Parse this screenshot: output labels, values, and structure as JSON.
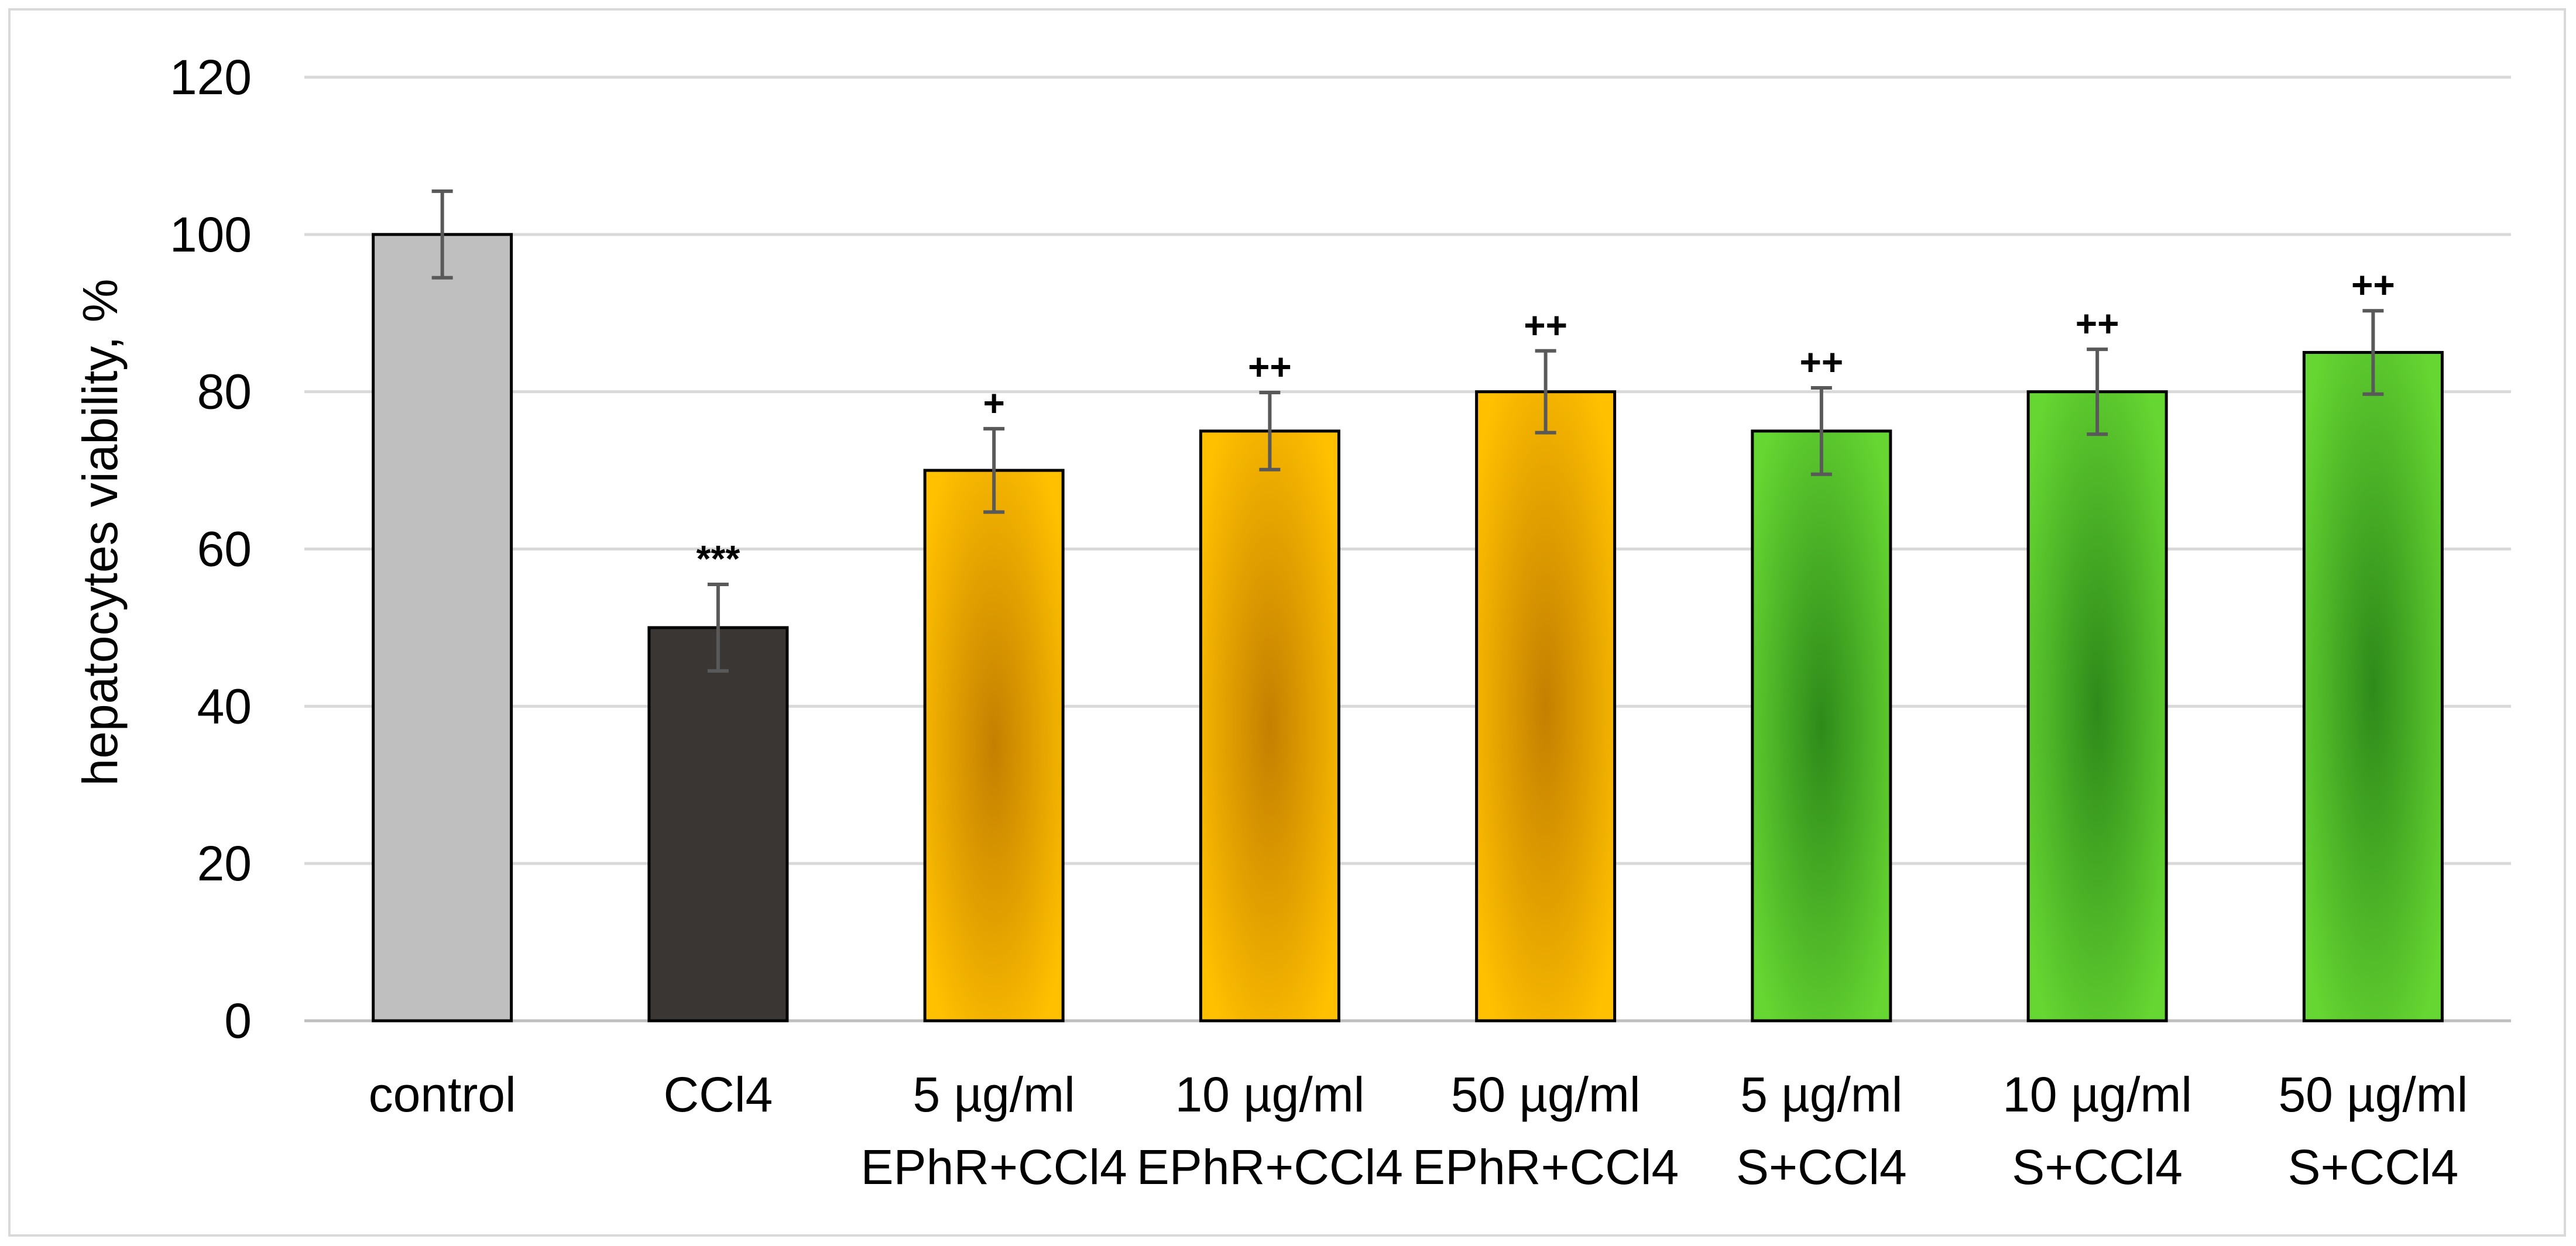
{
  "chart_data": {
    "type": "bar",
    "title": "",
    "xlabel": "",
    "ylabel": "hepatocytes viability, %",
    "ylim": [
      0,
      120
    ],
    "yticks": [
      0,
      20,
      40,
      60,
      80,
      100,
      120
    ],
    "grid": true,
    "legend": "none",
    "categories": [
      [
        "control"
      ],
      [
        "CCl4"
      ],
      [
        "5 µg/ml",
        "EPhR+CCl4"
      ],
      [
        "10 µg/ml",
        "EPhR+CCl4"
      ],
      [
        "50 µg/ml",
        "EPhR+CCl4"
      ],
      [
        "5 µg/ml",
        "S+CCl4"
      ],
      [
        "10 µg/ml",
        "S+CCl4"
      ],
      [
        "50 µg/ml",
        "S+CCl4"
      ]
    ],
    "values": [
      100,
      50,
      70,
      75,
      80,
      75,
      80,
      85
    ],
    "errors": [
      5.5,
      5.5,
      5.3,
      4.9,
      5.2,
      5.5,
      5.4,
      5.3
    ],
    "annotations": [
      "",
      "***",
      "+",
      "++",
      "++",
      "++",
      "++",
      "++"
    ],
    "fills": [
      "grey",
      "dark",
      "orange",
      "orange",
      "orange",
      "green",
      "green",
      "green"
    ]
  },
  "colors": {
    "grey": "#bfbfbf",
    "dark": "#3a3634",
    "orange_edge": "#ffc000",
    "orange_center": "#c47f00",
    "green_edge": "#66d632",
    "green_center": "#2e8a1a",
    "gridline": "#d9d9d9",
    "axis": "#bfbfbf",
    "error_bar": "#595959",
    "bar_outline": "#000000"
  }
}
